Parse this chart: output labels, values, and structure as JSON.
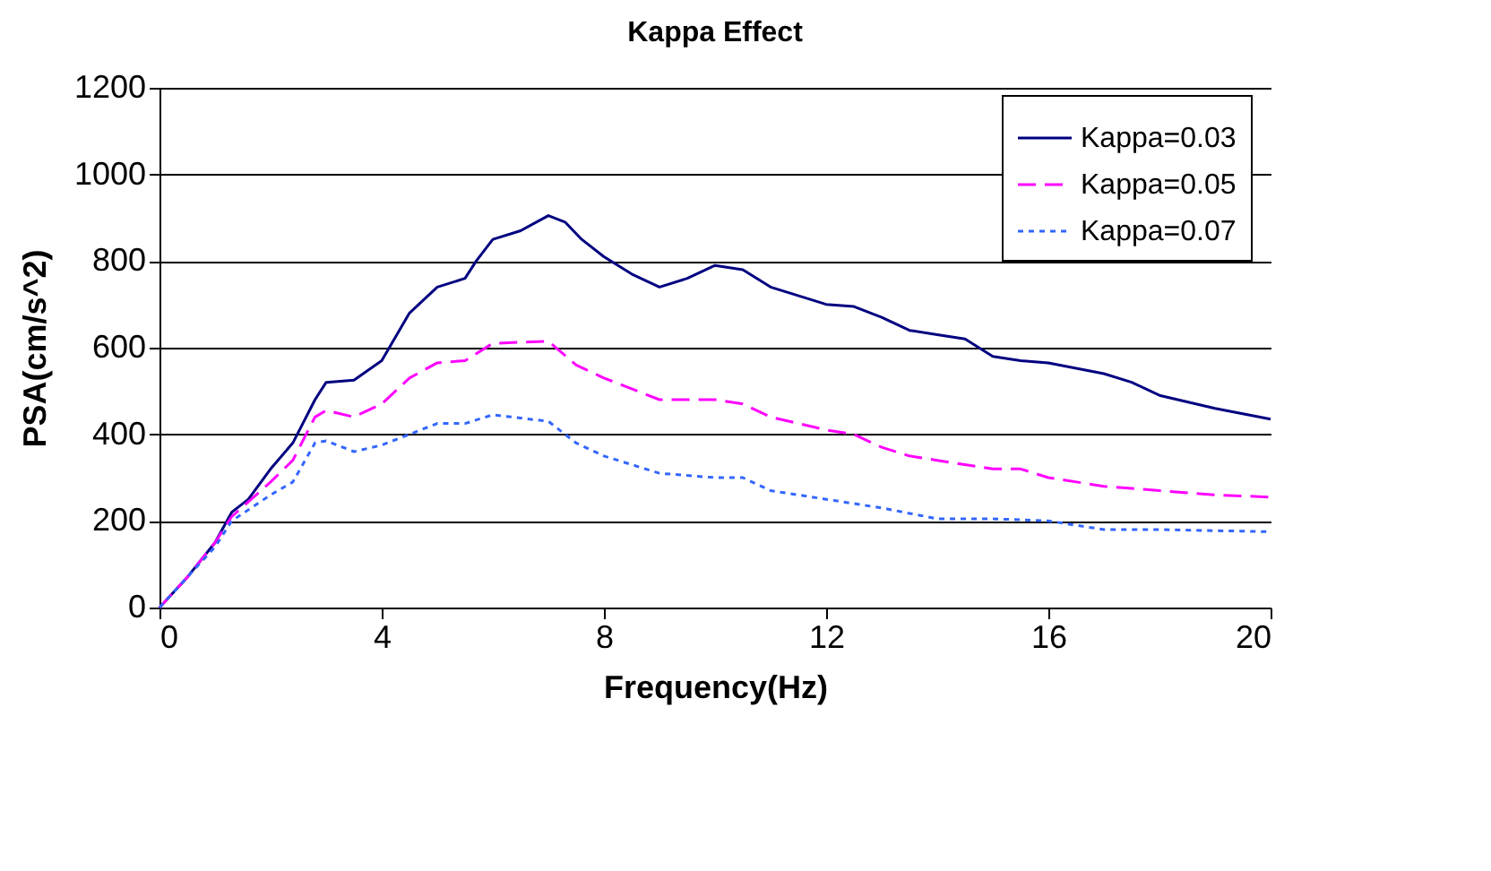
{
  "chart_data": {
    "type": "line",
    "title": "Kappa Effect",
    "xlabel": "Frequency(Hz)",
    "ylabel": "PSA(cm/s^2)",
    "xlim": [
      0,
      20
    ],
    "xticks": [
      0,
      4,
      8,
      12,
      16,
      20
    ],
    "ylim": [
      0,
      1200
    ],
    "yticks": [
      0,
      200,
      400,
      600,
      800,
      1000,
      1200
    ],
    "grid": "y",
    "legend": "top right",
    "marker": "none",
    "series": [
      {
        "name": "Kappa=0.03",
        "color": "#000080",
        "line_style": "solid",
        "x": [
          0,
          0.5,
          1,
          1.3,
          1.6,
          2,
          2.4,
          2.8,
          3,
          3.5,
          4,
          4.5,
          5,
          5.5,
          5.7,
          6,
          6.5,
          7,
          7.3,
          7.6,
          8,
          8.5,
          9,
          9.5,
          10,
          10.5,
          11,
          12,
          12.5,
          13,
          13.5,
          14,
          14.5,
          15,
          15.5,
          16,
          17,
          17.5,
          18,
          19,
          20
        ],
        "values": [
          0,
          70,
          150,
          220,
          250,
          320,
          380,
          480,
          520,
          525,
          570,
          680,
          740,
          760,
          800,
          850,
          870,
          905,
          890,
          850,
          810,
          770,
          740,
          760,
          790,
          780,
          740,
          700,
          695,
          670,
          640,
          630,
          620,
          580,
          570,
          565,
          540,
          520,
          490,
          460,
          435
        ]
      },
      {
        "name": "Kappa=0.05",
        "color": "#ff00ff",
        "line_style": "dashed",
        "x": [
          0,
          0.5,
          1,
          1.3,
          2,
          2.4,
          2.8,
          3,
          3.5,
          4,
          4.5,
          5,
          5.5,
          6,
          7,
          7.5,
          8,
          9,
          10,
          10.5,
          11,
          12,
          12.5,
          13,
          13.5,
          14,
          15,
          15.5,
          16,
          17,
          18,
          19,
          20
        ],
        "values": [
          0,
          70,
          150,
          210,
          290,
          340,
          440,
          455,
          440,
          470,
          530,
          565,
          570,
          610,
          615,
          560,
          530,
          480,
          480,
          470,
          440,
          410,
          400,
          370,
          350,
          340,
          320,
          320,
          300,
          280,
          270,
          260,
          255
        ]
      },
      {
        "name": "Kappa=0.07",
        "color": "#3366ff",
        "line_style": "dotted",
        "x": [
          0,
          0.5,
          1,
          1.3,
          2,
          2.4,
          2.8,
          3,
          3.5,
          4,
          4.5,
          5,
          5.5,
          6,
          7,
          7.5,
          8,
          9,
          10,
          10.5,
          11,
          12,
          13,
          14,
          15,
          16,
          17,
          18,
          20
        ],
        "values": [
          0,
          70,
          140,
          200,
          260,
          290,
          380,
          385,
          360,
          375,
          400,
          425,
          425,
          445,
          430,
          380,
          350,
          310,
          300,
          300,
          270,
          250,
          230,
          205,
          205,
          200,
          180,
          180,
          175
        ]
      }
    ]
  }
}
